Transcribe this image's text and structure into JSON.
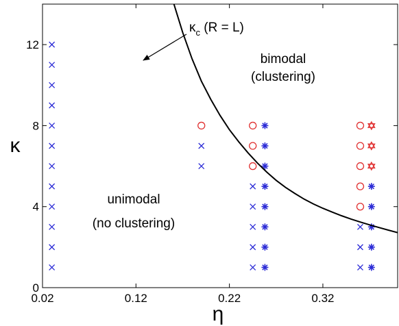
{
  "chart_data": {
    "type": "scatter",
    "xlabel": "η",
    "ylabel": "κ",
    "xlim": [
      0.02,
      0.4
    ],
    "ylim": [
      0,
      14
    ],
    "x_ticks": [
      0.02,
      0.12,
      0.22,
      0.32
    ],
    "x_tick_labels": [
      "0.02",
      "0.12",
      "0.22",
      "0.32"
    ],
    "y_ticks": [
      0,
      4,
      8,
      12
    ],
    "y_tick_labels": [
      "0",
      "4",
      "8",
      "12"
    ],
    "grid": false,
    "legend": "none",
    "series": [
      {
        "marker": "x",
        "color": "#2b2bd6",
        "points": [
          [
            0.03,
            1
          ],
          [
            0.03,
            2
          ],
          [
            0.03,
            3
          ],
          [
            0.03,
            4
          ],
          [
            0.03,
            5
          ],
          [
            0.03,
            6
          ],
          [
            0.03,
            7
          ],
          [
            0.03,
            8
          ],
          [
            0.03,
            9
          ],
          [
            0.03,
            10
          ],
          [
            0.03,
            11
          ],
          [
            0.03,
            12
          ],
          [
            0.19,
            6
          ],
          [
            0.19,
            7
          ],
          [
            0.245,
            1
          ],
          [
            0.245,
            2
          ],
          [
            0.245,
            3
          ],
          [
            0.245,
            4
          ],
          [
            0.245,
            5
          ],
          [
            0.36,
            1
          ],
          [
            0.36,
            2
          ],
          [
            0.36,
            3
          ]
        ]
      },
      {
        "marker": "asterisk",
        "color": "#2b2bd6",
        "points": [
          [
            0.258,
            1
          ],
          [
            0.258,
            2
          ],
          [
            0.258,
            3
          ],
          [
            0.258,
            4
          ],
          [
            0.258,
            5
          ],
          [
            0.258,
            6
          ],
          [
            0.258,
            7
          ],
          [
            0.258,
            8
          ],
          [
            0.372,
            1
          ],
          [
            0.372,
            2
          ],
          [
            0.372,
            3
          ],
          [
            0.372,
            4
          ],
          [
            0.372,
            5
          ]
        ]
      },
      {
        "marker": "circle",
        "color": "#e03030",
        "points": [
          [
            0.19,
            8
          ],
          [
            0.245,
            6
          ],
          [
            0.245,
            7
          ],
          [
            0.245,
            8
          ],
          [
            0.36,
            4
          ],
          [
            0.36,
            5
          ],
          [
            0.36,
            6
          ],
          [
            0.36,
            7
          ],
          [
            0.36,
            8
          ]
        ]
      },
      {
        "marker": "hexagram",
        "color": "#e03030",
        "points": [
          [
            0.372,
            6
          ],
          [
            0.372,
            7
          ],
          [
            0.372,
            8
          ]
        ]
      }
    ],
    "curve": {
      "name": "κc (R = L)",
      "color": "#000000",
      "x": [
        0.1606,
        0.17,
        0.18,
        0.19,
        0.2,
        0.21,
        0.22,
        0.23,
        0.24,
        0.25,
        0.26,
        0.27,
        0.28,
        0.29,
        0.3,
        0.31,
        0.32,
        0.33,
        0.34,
        0.35,
        0.36,
        0.37,
        0.38,
        0.39,
        0.4
      ],
      "y": [
        14.0,
        12.6,
        11.3,
        10.2,
        9.3,
        8.5,
        7.8,
        7.2,
        6.65,
        6.15,
        5.7,
        5.3,
        4.95,
        4.65,
        4.37,
        4.13,
        3.92,
        3.73,
        3.55,
        3.39,
        3.24,
        3.1,
        2.97,
        2.84,
        2.72
      ]
    },
    "annotations": {
      "curve_label_main": "κ",
      "curve_label_sub": "c",
      "curve_label_rest": " (R = L)",
      "bimodal_line1": "bimodal",
      "bimodal_line2": "(clustering)",
      "unimodal_line1": "unimodal",
      "unimodal_line2": "(no clustering)"
    }
  }
}
